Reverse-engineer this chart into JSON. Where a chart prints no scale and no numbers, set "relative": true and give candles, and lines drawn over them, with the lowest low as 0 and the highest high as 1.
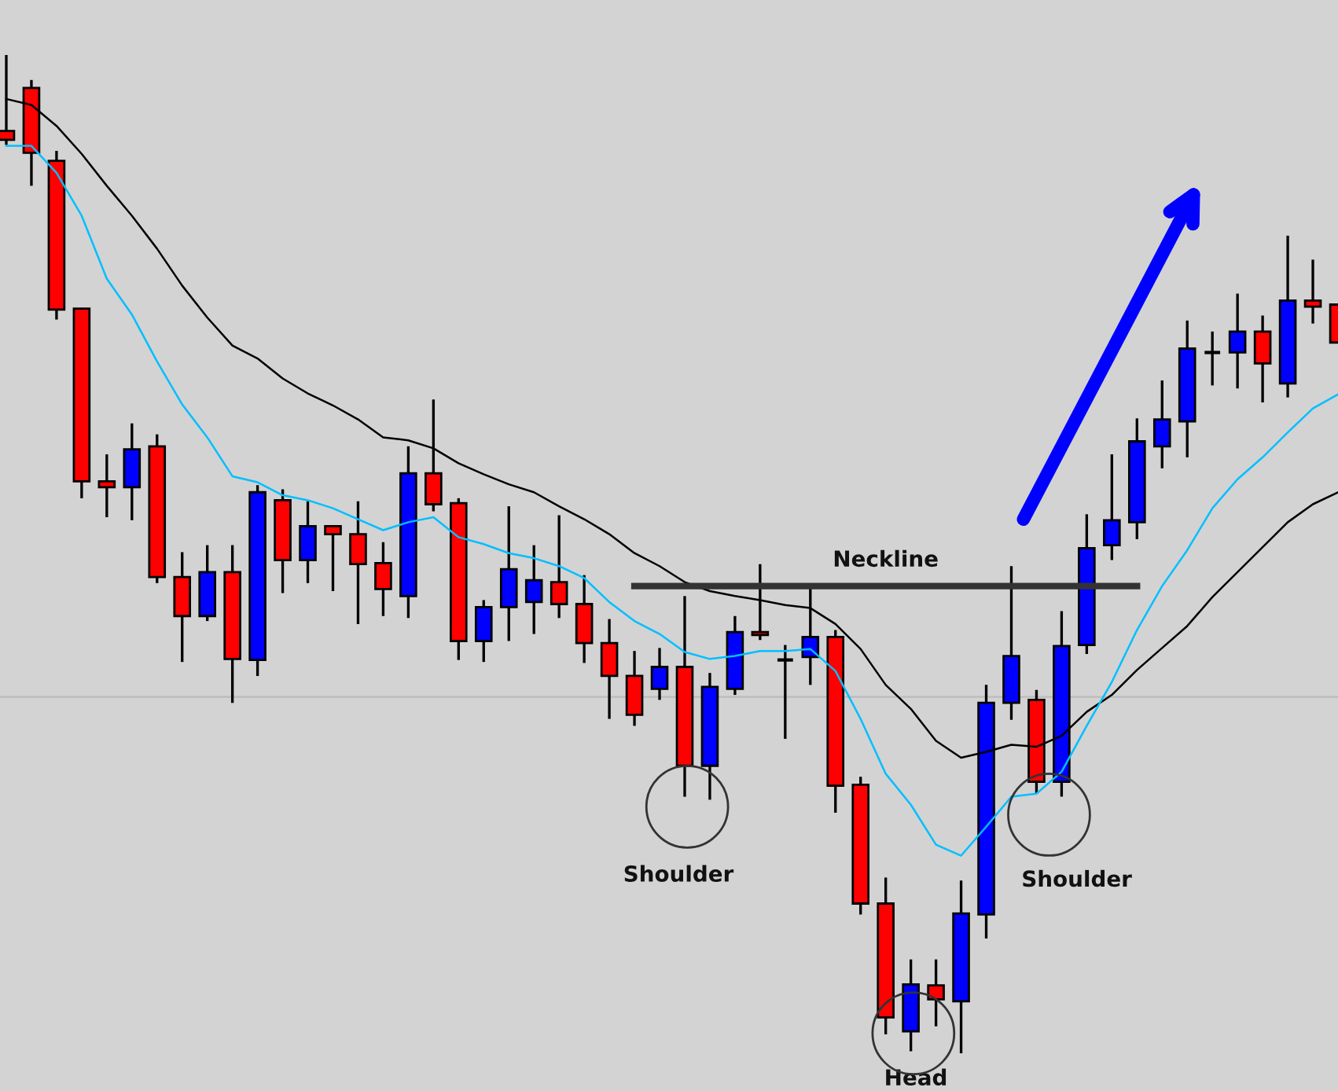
{
  "chart_data": [
    {
      "type": "candlestick",
      "relative": true,
      "categories": [
        null,
        null,
        null,
        null,
        null,
        null,
        null,
        null,
        null,
        null,
        null,
        null,
        null,
        null,
        null,
        null,
        null,
        null,
        null,
        null,
        null,
        null,
        null,
        null,
        null,
        null,
        null,
        null,
        null,
        null,
        null,
        null,
        null,
        null,
        null,
        null,
        null,
        null,
        null,
        null,
        null,
        null,
        null,
        null,
        null,
        null,
        null,
        null,
        null,
        null,
        null,
        null,
        null,
        null
      ],
      "ohlc": [
        [
          0.924,
          1.0,
          0.91,
          0.915
        ],
        [
          0.967,
          0.975,
          0.869,
          0.902
        ],
        [
          0.894,
          0.904,
          0.735,
          0.745
        ],
        [
          0.746,
          0.746,
          0.556,
          0.573
        ],
        [
          0.573,
          0.6,
          0.537,
          0.567
        ],
        [
          0.567,
          0.631,
          0.534,
          0.605
        ],
        [
          0.608,
          0.62,
          0.471,
          0.477
        ],
        [
          0.477,
          0.502,
          0.392,
          0.438
        ],
        [
          0.438,
          0.509,
          0.433,
          0.482
        ],
        [
          0.482,
          0.509,
          0.351,
          0.395
        ],
        [
          0.394,
          0.569,
          0.378,
          0.562
        ],
        [
          0.554,
          0.565,
          0.461,
          0.494
        ],
        [
          0.494,
          0.553,
          0.471,
          0.528
        ],
        [
          0.528,
          0.528,
          0.463,
          0.52
        ],
        [
          0.52,
          0.553,
          0.43,
          0.49
        ],
        [
          0.491,
          0.512,
          0.438,
          0.465
        ],
        [
          0.458,
          0.608,
          0.436,
          0.581
        ],
        [
          0.581,
          0.655,
          0.543,
          0.55
        ],
        [
          0.551,
          0.556,
          0.394,
          0.413
        ],
        [
          0.413,
          0.454,
          0.392,
          0.447
        ],
        [
          0.447,
          0.548,
          0.413,
          0.485
        ],
        [
          0.452,
          0.509,
          0.42,
          0.474
        ],
        [
          0.472,
          0.539,
          0.436,
          0.45
        ],
        [
          0.45,
          0.479,
          0.391,
          0.411
        ],
        [
          0.411,
          0.435,
          0.335,
          0.378
        ],
        [
          0.378,
          0.403,
          0.328,
          0.339
        ],
        [
          0.365,
          0.406,
          0.354,
          0.387
        ],
        [
          0.387,
          0.458,
          0.257,
          0.288
        ],
        [
          0.288,
          0.381,
          0.254,
          0.367
        ],
        [
          0.365,
          0.438,
          0.359,
          0.422
        ],
        [
          0.422,
          0.49,
          0.414,
          0.419
        ],
        [
          0.394,
          0.409,
          0.315,
          0.394
        ],
        [
          0.397,
          0.468,
          0.369,
          0.417
        ],
        [
          0.417,
          0.424,
          0.241,
          0.268
        ],
        [
          0.269,
          0.277,
          0.139,
          0.15
        ],
        [
          0.15,
          0.176,
          0.019,
          0.036
        ],
        [
          0.022,
          0.094,
          0.002,
          0.069
        ],
        [
          0.068,
          0.094,
          0.027,
          0.054
        ],
        [
          0.052,
          0.173,
          0.0,
          0.14
        ],
        [
          0.139,
          0.369,
          0.115,
          0.351
        ],
        [
          0.351,
          0.488,
          0.334,
          0.398
        ],
        [
          0.354,
          0.364,
          0.26,
          0.272
        ],
        [
          0.272,
          0.443,
          0.257,
          0.408
        ],
        [
          0.409,
          0.54,
          0.4,
          0.506
        ],
        [
          0.509,
          0.6,
          0.494,
          0.534
        ],
        [
          0.532,
          0.636,
          0.515,
          0.613
        ],
        [
          0.608,
          0.674,
          0.586,
          0.635
        ],
        [
          0.633,
          0.734,
          0.597,
          0.706
        ],
        [
          0.702,
          0.723,
          0.669,
          0.702
        ],
        [
          0.702,
          0.761,
          0.666,
          0.723
        ],
        [
          0.723,
          0.739,
          0.652,
          0.691
        ],
        [
          0.671,
          0.819,
          0.657,
          0.754
        ],
        [
          0.754,
          0.795,
          0.731,
          0.748
        ],
        [
          0.75,
          0.75,
          0.712,
          0.712
        ]
      ],
      "colors": [
        "#ff0000",
        "#ff0000",
        "#ff0000",
        "#ff0000",
        "#ff0000",
        "#0000ff",
        "#ff0000",
        "#ff0000",
        "#0000ff",
        "#ff0000",
        "#0000ff",
        "#ff0000",
        "#0000ff",
        "#ff0000",
        "#ff0000",
        "#ff0000",
        "#0000ff",
        "#ff0000",
        "#ff0000",
        "#0000ff",
        "#0000ff",
        "#0000ff",
        "#ff0000",
        "#ff0000",
        "#ff0000",
        "#ff0000",
        "#0000ff",
        "#ff0000",
        "#0000ff",
        "#0000ff",
        "#ff0000",
        "#000000",
        "#0000ff",
        "#ff0000",
        "#ff0000",
        "#ff0000",
        "#0000ff",
        "#ff0000",
        "#0000ff",
        "#0000ff",
        "#0000ff",
        "#ff0000",
        "#0000ff",
        "#0000ff",
        "#0000ff",
        "#0000ff",
        "#0000ff",
        "#0000ff",
        "#000000",
        "#0000ff",
        "#ff0000",
        "#0000ff",
        "#ff0000",
        "#ff0000"
      ],
      "ref_lines": [
        {
          "axis": "y",
          "value": 0.357,
          "color": "#bbbbbb"
        }
      ],
      "annotations": [
        "Shoulder",
        "Head",
        "Shoulder"
      ],
      "series": [
        {
          "type": "line",
          "color": "#000000",
          "values": [
            0.956,
            0.95,
            0.929,
            0.901,
            0.869,
            0.839,
            0.806,
            0.769,
            0.737,
            0.709,
            0.696,
            0.676,
            0.661,
            0.649,
            0.635,
            0.617,
            0.614,
            0.606,
            0.591,
            0.58,
            0.57,
            0.562,
            0.548,
            0.535,
            0.52,
            0.501,
            0.488,
            0.472,
            0.463,
            0.458,
            0.454,
            0.449,
            0.446,
            0.43,
            0.405,
            0.369,
            0.345,
            0.313,
            0.296,
            0.302,
            0.309,
            0.307,
            0.318,
            0.342,
            0.359,
            0.384,
            0.406,
            0.428,
            0.457,
            0.482,
            0.507,
            0.532,
            0.55,
            0.562
          ]
        },
        {
          "type": "line",
          "color": "#00bfff",
          "values": [
            0.909,
            0.909,
            0.882,
            0.839,
            0.776,
            0.74,
            0.693,
            0.65,
            0.617,
            0.578,
            0.572,
            0.559,
            0.554,
            0.546,
            0.535,
            0.524,
            0.532,
            0.537,
            0.517,
            0.51,
            0.501,
            0.496,
            0.488,
            0.476,
            0.452,
            0.433,
            0.42,
            0.402,
            0.395,
            0.398,
            0.403,
            0.403,
            0.405,
            0.383,
            0.335,
            0.28,
            0.249,
            0.209,
            0.198,
            0.227,
            0.257,
            0.26,
            0.282,
            0.328,
            0.372,
            0.424,
            0.468,
            0.504,
            0.546,
            0.575,
            0.597,
            0.622,
            0.646,
            0.66
          ]
        },
        {
          "type": "line",
          "name": "Neckline",
          "color": "#333333",
          "values": [
            null,
            null,
            null,
            null,
            null,
            null,
            null,
            null,
            null,
            null,
            null,
            null,
            null,
            null,
            null,
            null,
            null,
            null,
            null,
            null,
            null,
            null,
            null,
            null,
            null,
            0.468,
            0.468,
            0.468,
            0.468,
            0.468,
            0.468,
            0.468,
            0.468,
            0.468,
            0.468,
            0.468,
            0.468,
            0.468,
            0.468,
            0.468,
            0.468,
            0.468,
            0.468,
            0.468,
            0.468,
            0.468,
            null,
            null,
            null,
            null,
            null,
            null,
            null,
            null
          ]
        }
      ]
    }
  ]
}
